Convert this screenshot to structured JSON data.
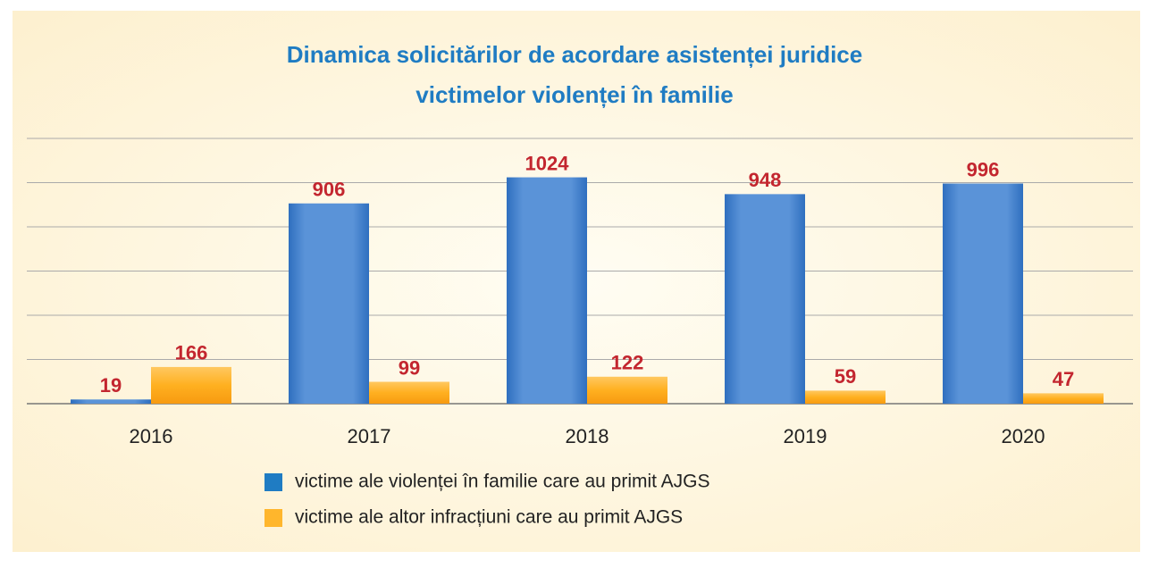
{
  "chart_data": {
    "type": "bar",
    "title": [
      "Dinamica solicitărilor de acordare asistenței juridice",
      "victimelor violenței în familie"
    ],
    "categories": [
      "2016",
      "2017",
      "2018",
      "2019",
      "2020"
    ],
    "series": [
      {
        "name": "victime ale violenței în familie care au primit AJGS",
        "color": "#4a86cf",
        "values": [
          19,
          906,
          1024,
          948,
          996
        ]
      },
      {
        "name": "victime ale altor infracțiuni care au primit AJGS",
        "color": "#ffb62c",
        "values": [
          166,
          99,
          122,
          59,
          47
        ]
      }
    ],
    "ylim": [
      0,
      1200
    ],
    "yticks": [
      0,
      200,
      400,
      600,
      800,
      1000,
      1200
    ],
    "grid": true
  }
}
